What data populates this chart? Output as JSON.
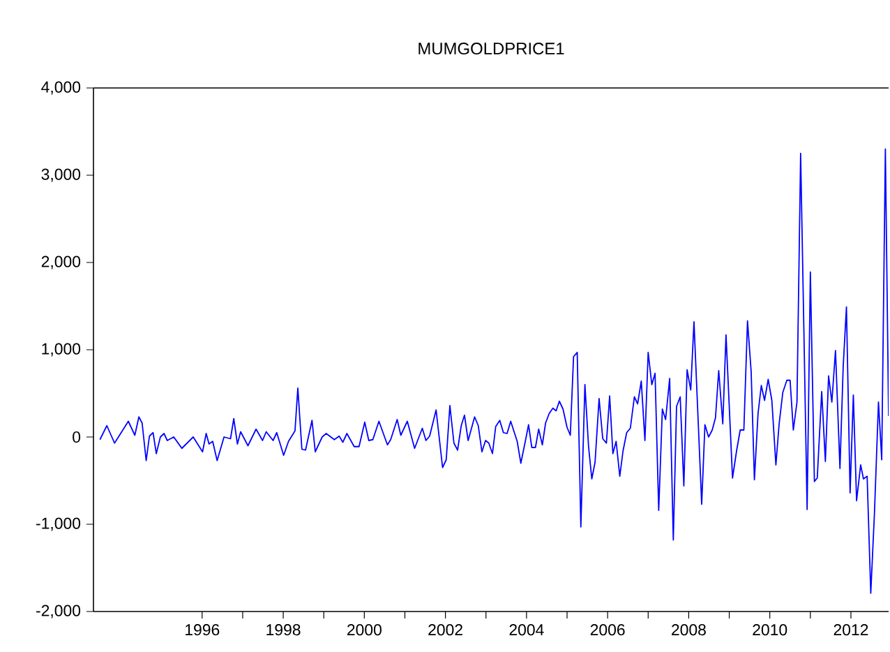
{
  "chart_data": {
    "type": "line",
    "title": "MUMGOLDPRICE1",
    "color": "#0000ff",
    "marker": "none",
    "line_style": "solid",
    "grid": false,
    "x": [
      1993.48,
      1993.65,
      1993.84,
      1994.18,
      1994.34,
      1994.44,
      1994.52,
      1994.62,
      1994.7,
      1994.79,
      1994.87,
      1994.97,
      1995.06,
      1995.14,
      1995.3,
      1995.5,
      1995.78,
      1996.01,
      1996.1,
      1996.17,
      1996.26,
      1996.37,
      1996.54,
      1996.7,
      1996.78,
      1996.87,
      1996.95,
      1997.13,
      1997.33,
      1997.49,
      1997.58,
      1997.75,
      1997.84,
      1998.01,
      1998.13,
      1998.29,
      1998.36,
      1998.46,
      1998.55,
      1998.71,
      1998.79,
      1998.96,
      1999.06,
      1999.26,
      1999.38,
      1999.47,
      1999.57,
      1999.75,
      1999.87,
      2000.01,
      2000.11,
      2000.21,
      2000.36,
      2000.57,
      2000.65,
      2000.81,
      2000.9,
      2001.06,
      2001.24,
      2001.43,
      2001.52,
      2001.61,
      2001.77,
      2001.93,
      2002.02,
      2002.11,
      2002.21,
      2002.3,
      2002.39,
      2002.47,
      2002.56,
      2002.72,
      2002.81,
      2002.9,
      2002.99,
      2003.07,
      2003.16,
      2003.24,
      2003.34,
      2003.43,
      2003.52,
      2003.61,
      2003.77,
      2003.86,
      2003.97,
      2004.05,
      2004.13,
      2004.22,
      2004.3,
      2004.39,
      2004.47,
      2004.56,
      2004.65,
      2004.73,
      2004.81,
      2004.9,
      2005.0,
      2005.08,
      2005.16,
      2005.25,
      2005.34,
      2005.44,
      2005.53,
      2005.61,
      2005.69,
      2005.79,
      2005.88,
      2005.97,
      2006.05,
      2006.13,
      2006.21,
      2006.3,
      2006.38,
      2006.47,
      2006.56,
      2006.66,
      2006.74,
      2006.83,
      2006.92,
      2007.0,
      2007.09,
      2007.17,
      2007.26,
      2007.35,
      2007.43,
      2007.53,
      2007.62,
      2007.7,
      2007.79,
      2007.88,
      2007.96,
      2008.05,
      2008.13,
      2008.32,
      2008.4,
      2008.49,
      2008.58,
      2008.66,
      2008.74,
      2008.84,
      2008.92,
      2009.08,
      2009.18,
      2009.27,
      2009.36,
      2009.45,
      2009.54,
      2009.62,
      2009.71,
      2009.79,
      2009.87,
      2009.96,
      2010.05,
      2010.15,
      2010.23,
      2010.32,
      2010.42,
      2010.5,
      2010.58,
      2010.67,
      2010.76,
      2010.84,
      2010.92,
      2011.0,
      2011.1,
      2011.17,
      2011.28,
      2011.37,
      2011.45,
      2011.53,
      2011.62,
      2011.73,
      2011.81,
      2011.89,
      2011.98,
      2012.06,
      2012.14,
      2012.24,
      2012.31,
      2012.4,
      2012.49,
      2012.58,
      2012.68,
      2012.76,
      2012.85,
      2012.93
    ],
    "values": [
      -30,
      130,
      -70,
      180,
      20,
      230,
      160,
      -270,
      10,
      50,
      -190,
      0,
      40,
      -40,
      0,
      -130,
      0,
      -170,
      40,
      -80,
      -50,
      -270,
      0,
      -20,
      210,
      -80,
      60,
      -100,
      90,
      -40,
      60,
      -40,
      50,
      -210,
      -50,
      70,
      560,
      -140,
      -150,
      190,
      -170,
      0,
      40,
      -30,
      10,
      -60,
      40,
      -110,
      -110,
      170,
      -40,
      -30,
      180,
      -90,
      -30,
      200,
      20,
      180,
      -130,
      100,
      -40,
      10,
      310,
      -350,
      -260,
      360,
      -70,
      -150,
      130,
      250,
      -40,
      230,
      130,
      -170,
      -40,
      -70,
      -190,
      120,
      190,
      50,
      40,
      180,
      -50,
      -300,
      -50,
      140,
      -120,
      -120,
      90,
      -90,
      160,
      270,
      330,
      300,
      410,
      320,
      110,
      20,
      920,
      970,
      -1030,
      600,
      -110,
      -480,
      -290,
      440,
      -20,
      -70,
      470,
      -190,
      -50,
      -450,
      -160,
      50,
      100,
      460,
      380,
      640,
      -40,
      970,
      600,
      730,
      -840,
      320,
      200,
      670,
      -1180,
      350,
      460,
      -560,
      770,
      540,
      1320,
      -770,
      140,
      0,
      80,
      220,
      760,
      150,
      1170,
      -470,
      -160,
      80,
      80,
      1330,
      750,
      -490,
      270,
      590,
      420,
      660,
      420,
      -320,
      150,
      510,
      650,
      650,
      80,
      400,
      3250,
      1230,
      -830,
      1890,
      -510,
      -470,
      520,
      -280,
      700,
      400,
      990,
      -360,
      810,
      1490,
      -640,
      480,
      -730,
      -320,
      -480,
      -450,
      -1790,
      -880,
      400,
      -260,
      3300,
      240
    ],
    "xlim": [
      1993.32,
      2012.93
    ],
    "ylim": [
      -2000,
      4000
    ],
    "xticks": [
      1996,
      {
        "value": 1997,
        "label": null
      },
      1998,
      {
        "value": 1999,
        "label": null
      },
      2000,
      {
        "value": 2001,
        "label": null
      },
      2002,
      {
        "value": 2003,
        "label": null
      },
      2004,
      {
        "value": 2005,
        "label": null
      },
      2006,
      {
        "value": 2007,
        "label": null
      },
      2008,
      {
        "value": 2009,
        "label": null
      },
      2010,
      {
        "value": 2011,
        "label": null
      },
      2012
    ],
    "yticks": [
      {
        "value": -2000,
        "label": "-2,000"
      },
      {
        "value": -1000,
        "label": "-1,000"
      },
      0,
      {
        "value": 1000,
        "label": "1,000"
      },
      {
        "value": 2000,
        "label": "2,000"
      },
      {
        "value": 3000,
        "label": "3,000"
      },
      {
        "value": 4000,
        "label": "4,000"
      }
    ]
  }
}
